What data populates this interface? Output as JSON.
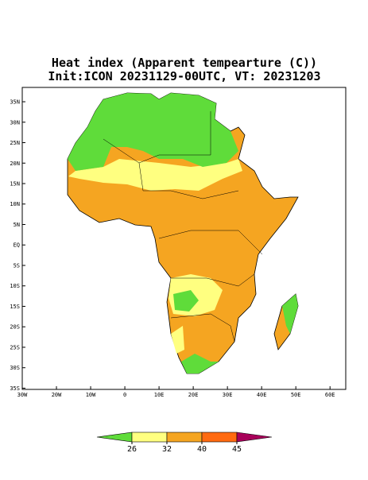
{
  "map": {
    "title": [
      "Heat index (Apparent tempearture (C))",
      "Init:ICON 20231129-00UTC, VT: 20231203"
    ],
    "lonlim": [
      -30,
      64.6
    ],
    "latlim": [
      -35.3,
      38.5
    ],
    "lon_ticks": [
      {
        "value": -30,
        "label": "30W"
      },
      {
        "value": -20,
        "label": "20W"
      },
      {
        "value": -10,
        "label": "10W"
      },
      0,
      {
        "value": 10,
        "label": "10E"
      },
      {
        "value": 20,
        "label": "20E"
      },
      {
        "value": 30,
        "label": "30E"
      },
      {
        "value": 40,
        "label": "40E"
      },
      {
        "value": 50,
        "label": "50E"
      },
      {
        "value": 60,
        "label": "60E"
      }
    ],
    "lat_ticks": [
      {
        "value": 35,
        "label": "35N"
      },
      {
        "value": 30,
        "label": "30N"
      },
      {
        "value": 25,
        "label": "25N"
      },
      {
        "value": 20,
        "label": "20N"
      },
      {
        "value": 15,
        "label": "15N"
      },
      {
        "value": 10,
        "label": "10N"
      },
      {
        "value": 5,
        "label": "5N"
      },
      {
        "value": 0,
        "label": "EQ"
      },
      {
        "value": -5,
        "label": "5S"
      },
      {
        "value": -10,
        "label": "10S"
      },
      {
        "value": -15,
        "label": "15S"
      },
      {
        "value": -20,
        "label": "20S"
      },
      {
        "value": -25,
        "label": "25S"
      },
      {
        "value": -30,
        "label": "30S"
      },
      {
        "value": -35,
        "label": "35S"
      }
    ]
  },
  "colorbar": {
    "levels": [
      26,
      32,
      40,
      45
    ],
    "colors": [
      "#5fdc3a",
      "#ffff80",
      "#f5a521",
      "#ff6a10",
      "#a8005a"
    ]
  }
}
